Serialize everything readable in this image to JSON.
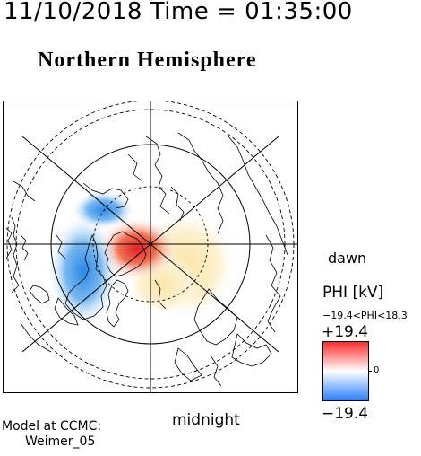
{
  "header": {
    "time_title": "11/10/2018 Time = 01:35:00",
    "hemisphere_title": "Northern Hemisphere"
  },
  "map": {
    "dawn_label": "dawn",
    "midnight_label": "midnight",
    "projection": "polar-stereographic-north",
    "positive_potential_color": "#e8352a",
    "negative_potential_color": "#2f8fe0",
    "grid_color": "#000000",
    "dashed_latitude_circles": true
  },
  "legend": {
    "title": "PHI [kV]",
    "range_text": "−19.4<PHI<18.3",
    "max_label": "+19.4",
    "min_label": "−19.4",
    "zero_label": "0",
    "colormap": [
      "#2a80ff",
      "#ffffff",
      "#ff2a2a"
    ]
  },
  "footer": {
    "model_line1": "Model at CCMC:",
    "model_line2": "Weimer_05"
  }
}
